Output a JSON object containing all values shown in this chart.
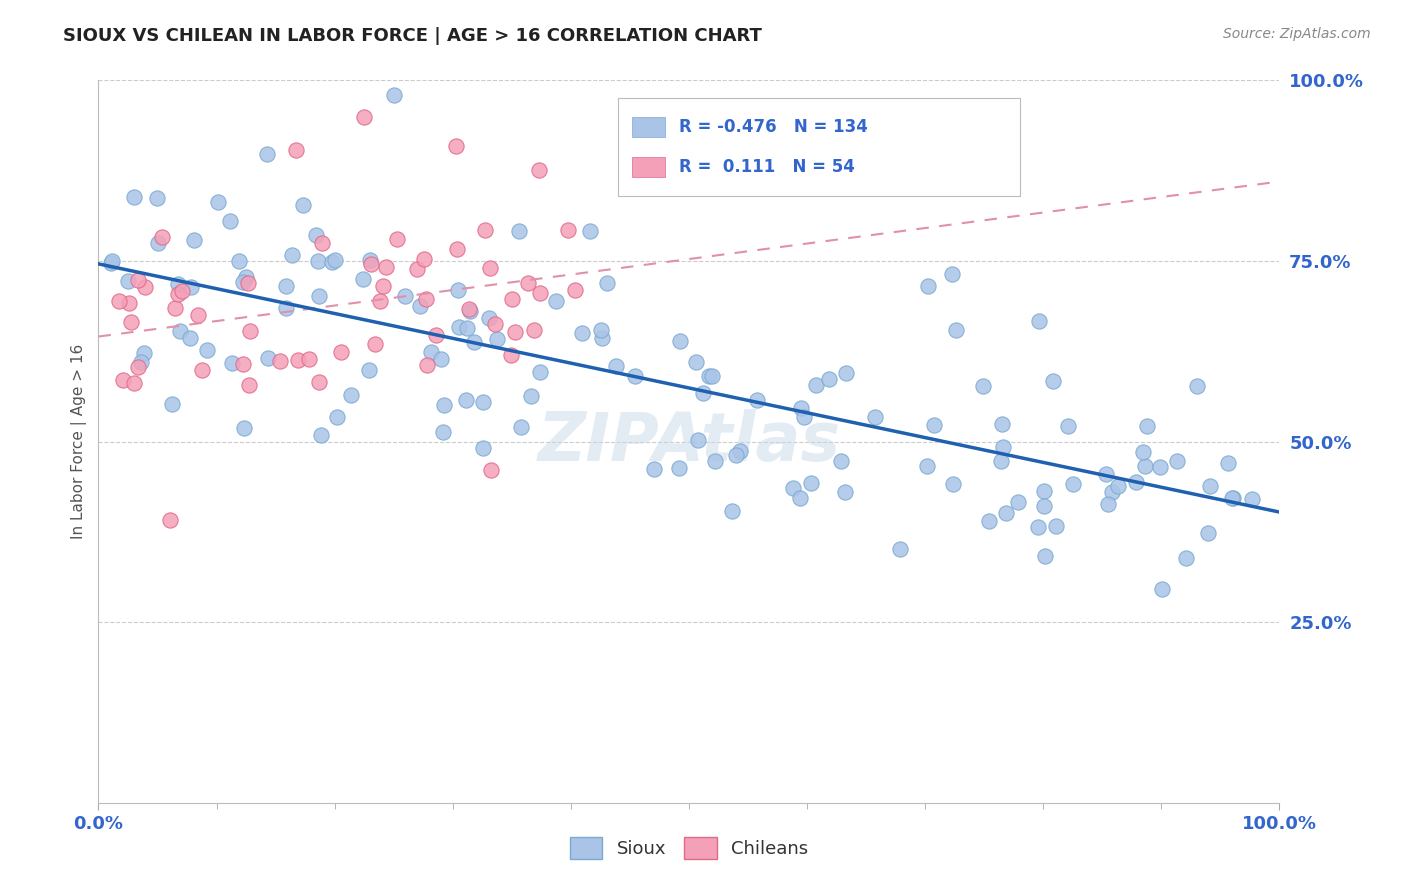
{
  "title": "SIOUX VS CHILEAN IN LABOR FORCE | AGE > 16 CORRELATION CHART",
  "source_text": "Source: ZipAtlas.com",
  "ylabel": "In Labor Force | Age > 16",
  "xlim": [
    0.0,
    1.0
  ],
  "ylim": [
    0.0,
    1.0
  ],
  "sioux_color": "#aac4e8",
  "sioux_edge_color": "#7aaad0",
  "chilean_color": "#f4a0b8",
  "chilean_edge_color": "#e06888",
  "trend_sioux_color": "#2060b0",
  "trend_chilean_color": "#e090a8",
  "background_color": "#ffffff",
  "grid_color": "#cccccc",
  "R_sioux": -0.476,
  "N_sioux": 134,
  "R_chilean": 0.111,
  "N_chilean": 54,
  "legend_label_sioux": "Sioux",
  "legend_label_chilean": "Chileans",
  "legend_color": "#3366cc",
  "title_color": "#222222",
  "source_color": "#888888",
  "axis_tick_color": "#3366cc",
  "ylabel_color": "#555555"
}
